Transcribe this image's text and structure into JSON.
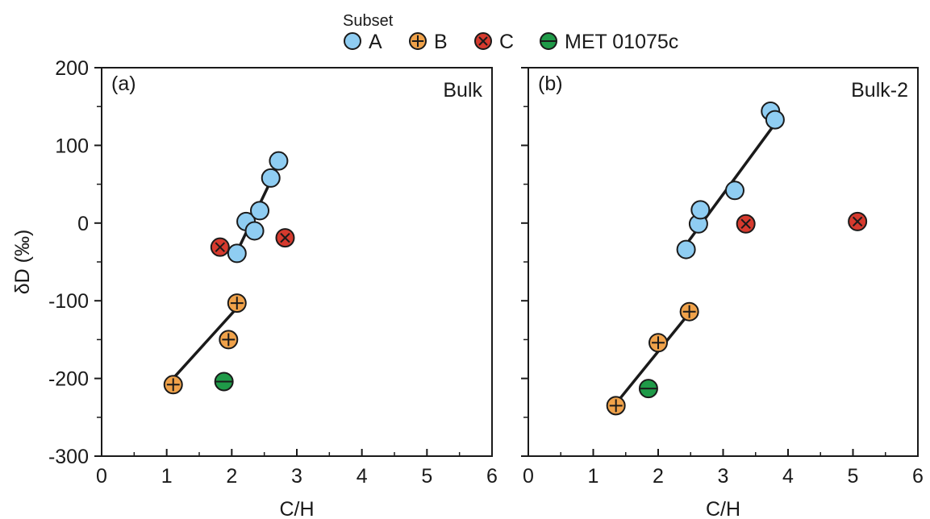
{
  "legend": {
    "title": "Subset",
    "items": [
      {
        "label": "A",
        "marker": "circle",
        "color": "#8fcdf2"
      },
      {
        "label": "B",
        "marker": "circle-plus",
        "color": "#f0a24a"
      },
      {
        "label": "C",
        "marker": "circle-x",
        "color": "#d63a2e"
      },
      {
        "label": "MET 01075c",
        "marker": "circle-minus",
        "color": "#1f9a48"
      }
    ]
  },
  "chart_data": [
    {
      "type": "scatter",
      "panel_label": "(a)",
      "title": "Bulk",
      "xlabel": "C/H",
      "ylabel": "δD (‰)",
      "xlim": [
        0,
        6
      ],
      "ylim": [
        -300,
        200
      ],
      "xticks": [
        0,
        1,
        2,
        3,
        4,
        5,
        6
      ],
      "yticks": [
        -300,
        -200,
        -100,
        0,
        100,
        200
      ],
      "grid": false,
      "series": [
        {
          "name": "A",
          "points": [
            [
              2.08,
              -39
            ],
            [
              2.22,
              2
            ],
            [
              2.35,
              -10
            ],
            [
              2.43,
              16
            ],
            [
              2.6,
              58
            ],
            [
              2.72,
              80
            ]
          ]
        },
        {
          "name": "B",
          "points": [
            [
              1.1,
              -208
            ],
            [
              1.95,
              -150
            ],
            [
              2.08,
              -103
            ]
          ]
        },
        {
          "name": "C",
          "points": [
            [
              1.82,
              -31
            ],
            [
              2.82,
              -19
            ]
          ]
        },
        {
          "name": "MET 01075c",
          "points": [
            [
              1.88,
              -204
            ]
          ]
        }
      ],
      "trendlines": [
        {
          "series": "A",
          "from": [
            2.12,
            -30
          ],
          "to": [
            2.7,
            72
          ]
        },
        {
          "series": "B",
          "from": [
            1.12,
            -198
          ],
          "to": [
            2.05,
            -112
          ]
        }
      ]
    },
    {
      "type": "scatter",
      "panel_label": "(b)",
      "title": "Bulk-2",
      "xlabel": "C/H",
      "ylabel": "",
      "xlim": [
        0,
        6
      ],
      "ylim": [
        -300,
        200
      ],
      "xticks": [
        0,
        1,
        2,
        3,
        4,
        5,
        6
      ],
      "yticks": [
        -300,
        -200,
        -100,
        0,
        100,
        200
      ],
      "grid": false,
      "series": [
        {
          "name": "A",
          "points": [
            [
              2.43,
              -34
            ],
            [
              2.62,
              -1
            ],
            [
              2.65,
              17
            ],
            [
              3.18,
              42
            ],
            [
              3.73,
              144
            ],
            [
              3.8,
              133
            ]
          ]
        },
        {
          "name": "B",
          "points": [
            [
              1.35,
              -235
            ],
            [
              2.0,
              -154
            ],
            [
              2.48,
              -114
            ]
          ]
        },
        {
          "name": "C",
          "points": [
            [
              3.35,
              -1
            ],
            [
              5.07,
              2
            ]
          ]
        },
        {
          "name": "MET 01075c",
          "points": [
            [
              1.85,
              -213
            ]
          ]
        }
      ],
      "trendlines": [
        {
          "series": "A",
          "from": [
            2.48,
            -22
          ],
          "to": [
            3.8,
            128
          ]
        },
        {
          "series": "B",
          "from": [
            1.42,
            -225
          ],
          "to": [
            2.42,
            -122
          ]
        }
      ]
    }
  ]
}
